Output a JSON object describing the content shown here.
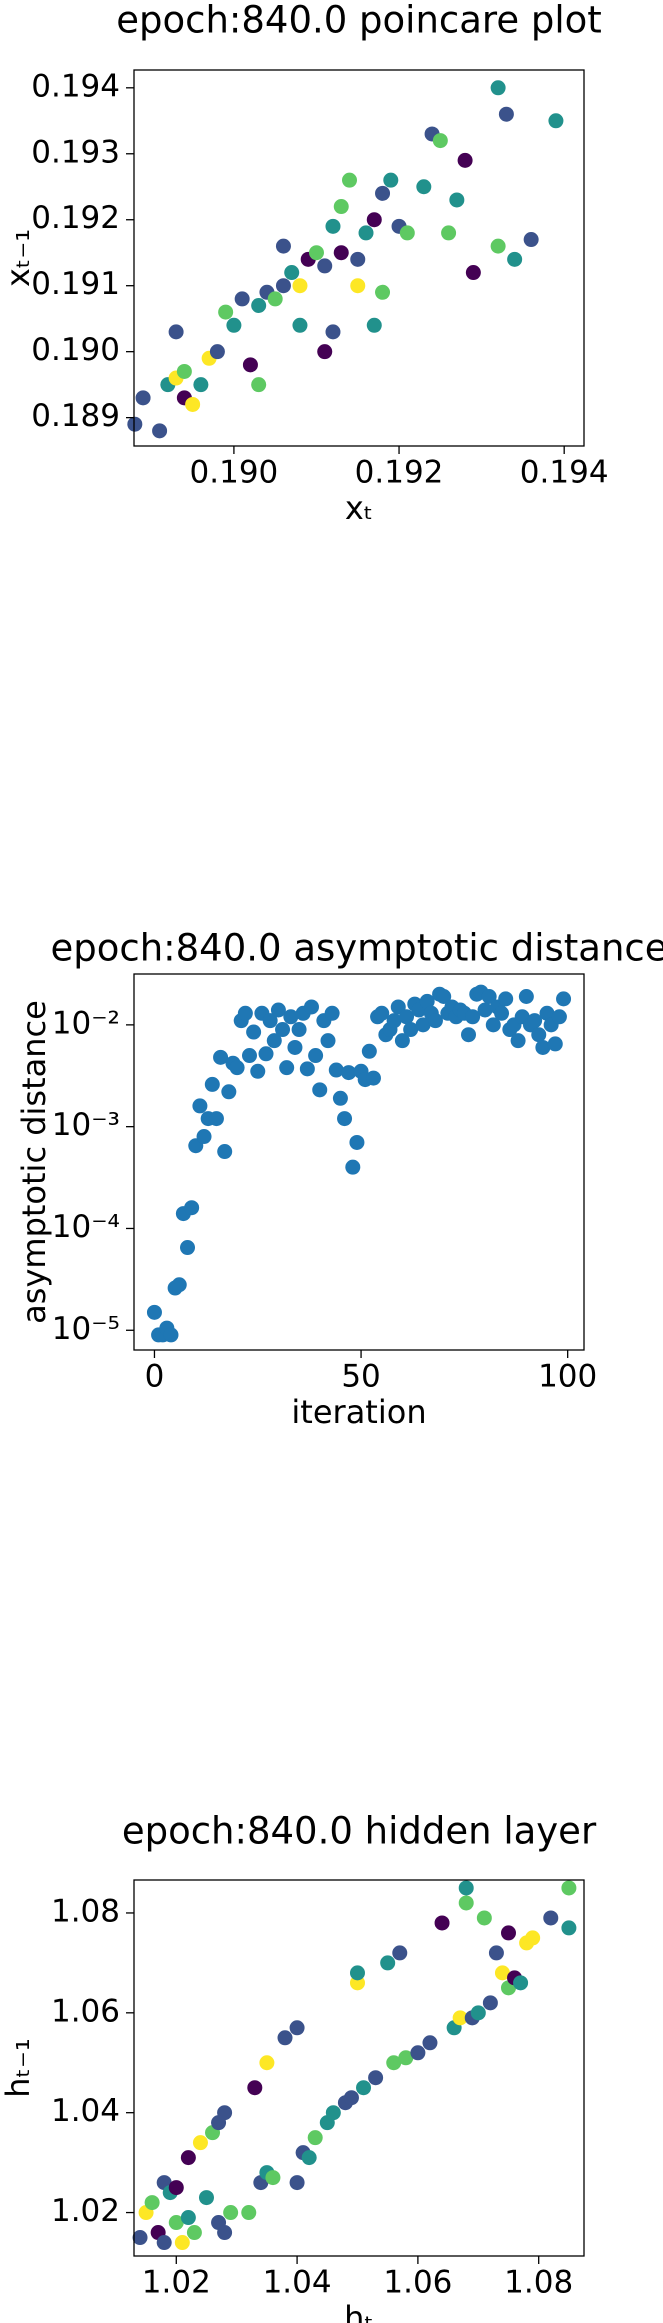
{
  "chart_data": [
    {
      "type": "scatter",
      "title": "epoch:840.0 poincare plot",
      "xlabel": "xₜ",
      "ylabel": "xₜ₋₁",
      "x": [
        0.1888,
        0.1889,
        0.1891,
        0.1892,
        0.1893,
        0.1894,
        0.1893,
        0.1894,
        0.1895,
        0.1896,
        0.1897,
        0.1898,
        0.1899,
        0.19,
        0.1901,
        0.1902,
        0.1903,
        0.1903,
        0.1904,
        0.1905,
        0.1906,
        0.1906,
        0.1907,
        0.1908,
        0.1908,
        0.1909,
        0.191,
        0.1911,
        0.1911,
        0.1912,
        0.1912,
        0.1913,
        0.1913,
        0.1914,
        0.1915,
        0.1915,
        0.1916,
        0.1917,
        0.1917,
        0.1918,
        0.1918,
        0.1919,
        0.192,
        0.1921,
        0.1923,
        0.1924,
        0.1925,
        0.1926,
        0.1927,
        0.1928,
        0.1929,
        0.1932,
        0.1932,
        0.1933,
        0.1934,
        0.1936,
        0.1939
      ],
      "y": [
        0.1889,
        0.1893,
        0.1888,
        0.1895,
        0.1896,
        0.1897,
        0.1903,
        0.1893,
        0.1892,
        0.1895,
        0.1899,
        0.19,
        0.1906,
        0.1904,
        0.1908,
        0.1898,
        0.1895,
        0.1907,
        0.1909,
        0.1908,
        0.191,
        0.1916,
        0.1912,
        0.1904,
        0.191,
        0.1914,
        0.1915,
        0.19,
        0.1913,
        0.1919,
        0.1903,
        0.1915,
        0.1922,
        0.1926,
        0.191,
        0.1914,
        0.1918,
        0.1904,
        0.192,
        0.1909,
        0.1924,
        0.1926,
        0.1919,
        0.1918,
        0.1925,
        0.1933,
        0.1932,
        0.1918,
        0.1923,
        0.1929,
        0.1912,
        0.194,
        0.1916,
        0.1936,
        0.1914,
        0.1917,
        0.1935
      ],
      "colors": [
        "#3b528b",
        "#3b528b",
        "#3b528b",
        "#21918c",
        "#fde725",
        "#5ec962",
        "#3b528b",
        "#440154",
        "#fde725",
        "#21918c",
        "#fde725",
        "#3b528b",
        "#5ec962",
        "#21918c",
        "#3b528b",
        "#440154",
        "#5ec962",
        "#21918c",
        "#3b528b",
        "#5ec962",
        "#3b528b",
        "#3b528b",
        "#21918c",
        "#21918c",
        "#fde725",
        "#440154",
        "#5ec962",
        "#440154",
        "#3b528b",
        "#21918c",
        "#3b528b",
        "#440154",
        "#5ec962",
        "#5ec962",
        "#fde725",
        "#3b528b",
        "#21918c",
        "#21918c",
        "#440154",
        "#5ec962",
        "#3b528b",
        "#21918c",
        "#3b528b",
        "#5ec962",
        "#21918c",
        "#3b528b",
        "#5ec962",
        "#5ec962",
        "#21918c",
        "#440154",
        "#440154",
        "#21918c",
        "#5ec962",
        "#3b528b",
        "#21918c",
        "#3b528b",
        "#21918c"
      ],
      "xlim": [
        0.18879,
        0.19424
      ],
      "ylim": [
        0.18857,
        0.19427
      ],
      "xticks": [
        {
          "value": 0.19,
          "label": "0.190"
        },
        0.192,
        0.194
      ],
      "yticks": [
        0.189,
        {
          "value": 0.19,
          "label": "0.190"
        },
        0.191,
        0.192,
        0.193,
        0.194
      ]
    },
    {
      "type": "scatter",
      "title": "epoch:840.0 asymptotic distance",
      "xlabel": "iteration",
      "ylabel": "asymptotic distance",
      "color": "#1f77b4",
      "ylog": true,
      "x": [
        0,
        1,
        2,
        3,
        4,
        5,
        6,
        7,
        8,
        9,
        10,
        11,
        12,
        13,
        14,
        15,
        16,
        17,
        18,
        19,
        20,
        21,
        22,
        23,
        24,
        25,
        26,
        27,
        28,
        29,
        30,
        31,
        32,
        33,
        34,
        35,
        36,
        37,
        38,
        39,
        40,
        41,
        42,
        43,
        44,
        45,
        46,
        47,
        48,
        49,
        50,
        51,
        52,
        53,
        54,
        55,
        56,
        57,
        58,
        59,
        60,
        61,
        62,
        63,
        64,
        65,
        66,
        67,
        68,
        69,
        70,
        71,
        72,
        73,
        74,
        75,
        76,
        77,
        78,
        79,
        80,
        81,
        82,
        83,
        84,
        85,
        86,
        87,
        88,
        89,
        90,
        91,
        92,
        93,
        94,
        95,
        96,
        97,
        98,
        99
      ],
      "y": [
        1.5e-05,
        9e-06,
        9e-06,
        1.05e-05,
        9e-06,
        2.6e-05,
        2.8e-05,
        0.00014,
        6.5e-05,
        0.00016,
        0.00065,
        0.0016,
        0.0008,
        0.0012,
        0.0026,
        0.0012,
        0.0048,
        0.00057,
        0.0022,
        0.0042,
        0.0038,
        0.011,
        0.013,
        0.005,
        0.0085,
        0.0035,
        0.013,
        0.0052,
        0.011,
        0.007,
        0.014,
        0.009,
        0.0038,
        0.012,
        0.006,
        0.009,
        0.013,
        0.0037,
        0.015,
        0.005,
        0.0023,
        0.011,
        0.007,
        0.013,
        0.0036,
        0.0019,
        0.0012,
        0.0034,
        0.0004,
        0.0007,
        0.0035,
        0.0029,
        0.0055,
        0.003,
        0.012,
        0.013,
        0.008,
        0.009,
        0.011,
        0.015,
        0.007,
        0.012,
        0.009,
        0.016,
        0.014,
        0.01,
        0.017,
        0.013,
        0.011,
        0.02,
        0.019,
        0.013,
        0.015,
        0.012,
        0.014,
        0.013,
        0.008,
        0.012,
        0.02,
        0.021,
        0.014,
        0.019,
        0.01,
        0.015,
        0.013,
        0.018,
        0.009,
        0.01,
        0.007,
        0.012,
        0.019,
        0.01,
        0.011,
        0.008,
        0.006,
        0.013,
        0.01,
        0.0065,
        0.012,
        0.018
      ],
      "xlim": [
        -4.95,
        103.95
      ],
      "ylim": [
        6.4e-06,
        0.0316
      ],
      "xticks": [
        0,
        50,
        100
      ],
      "yticks": [
        {
          "value": 1e-05,
          "label": "10⁻⁵"
        },
        {
          "value": 0.0001,
          "label": "10⁻⁴"
        },
        {
          "value": 0.001,
          "label": "10⁻³"
        },
        {
          "value": 0.01,
          "label": "10⁻²"
        }
      ]
    },
    {
      "type": "scatter",
      "title": "epoch:840.0 hidden layer",
      "xlabel": "hₜ",
      "ylabel": "hₜ₋₁",
      "x": [
        1.014,
        1.015,
        1.016,
        1.017,
        1.018,
        1.018,
        1.019,
        1.02,
        1.02,
        1.021,
        1.022,
        1.022,
        1.023,
        1.024,
        1.025,
        1.026,
        1.027,
        1.027,
        1.028,
        1.028,
        1.029,
        1.032,
        1.033,
        1.034,
        1.035,
        1.035,
        1.036,
        1.038,
        1.04,
        1.04,
        1.041,
        1.042,
        1.043,
        1.045,
        1.046,
        1.048,
        1.049,
        1.05,
        1.05,
        1.051,
        1.053,
        1.055,
        1.056,
        1.057,
        1.058,
        1.06,
        1.062,
        1.064,
        1.066,
        1.067,
        1.068,
        1.068,
        1.069,
        1.07,
        1.071,
        1.072,
        1.073,
        1.074,
        1.075,
        1.075,
        1.076,
        1.077,
        1.078,
        1.079,
        1.082,
        1.085,
        1.085
      ],
      "y": [
        1.015,
        1.02,
        1.022,
        1.016,
        1.014,
        1.026,
        1.024,
        1.018,
        1.025,
        1.014,
        1.019,
        1.031,
        1.016,
        1.034,
        1.023,
        1.036,
        1.038,
        1.018,
        1.04,
        1.016,
        1.02,
        1.02,
        1.045,
        1.026,
        1.05,
        1.028,
        1.027,
        1.055,
        1.057,
        1.026,
        1.032,
        1.031,
        1.035,
        1.038,
        1.04,
        1.042,
        1.043,
        1.066,
        1.068,
        1.045,
        1.047,
        1.07,
        1.05,
        1.072,
        1.051,
        1.052,
        1.054,
        1.078,
        1.057,
        1.059,
        1.085,
        1.082,
        1.059,
        1.06,
        1.079,
        1.062,
        1.072,
        1.068,
        1.076,
        1.065,
        1.067,
        1.066,
        1.074,
        1.075,
        1.079,
        1.085,
        1.077
      ],
      "colors": [
        "#3b528b",
        "#fde725",
        "#5ec962",
        "#440154",
        "#3b528b",
        "#3b528b",
        "#21918c",
        "#5ec962",
        "#440154",
        "#fde725",
        "#21918c",
        "#440154",
        "#5ec962",
        "#fde725",
        "#21918c",
        "#5ec962",
        "#3b528b",
        "#3b528b",
        "#3b528b",
        "#3b528b",
        "#5ec962",
        "#5ec962",
        "#440154",
        "#3b528b",
        "#fde725",
        "#21918c",
        "#5ec962",
        "#3b528b",
        "#3b528b",
        "#3b528b",
        "#3b528b",
        "#21918c",
        "#5ec962",
        "#21918c",
        "#21918c",
        "#3b528b",
        "#3b528b",
        "#fde725",
        "#21918c",
        "#21918c",
        "#3b528b",
        "#21918c",
        "#5ec962",
        "#3b528b",
        "#5ec962",
        "#3b528b",
        "#3b528b",
        "#440154",
        "#21918c",
        "#fde725",
        "#21918c",
        "#5ec962",
        "#3b528b",
        "#21918c",
        "#5ec962",
        "#3b528b",
        "#3b528b",
        "#fde725",
        "#440154",
        "#5ec962",
        "#440154",
        "#21918c",
        "#fde725",
        "#fde725",
        "#3b528b",
        "#5ec962",
        "#21918c"
      ],
      "xlim": [
        1.013,
        1.0875
      ],
      "ylim": [
        1.0113,
        1.0866
      ],
      "xticks": [
        1.02,
        1.04,
        1.06,
        1.08
      ],
      "yticks": [
        1.02,
        1.04,
        1.06,
        1.08
      ]
    }
  ]
}
